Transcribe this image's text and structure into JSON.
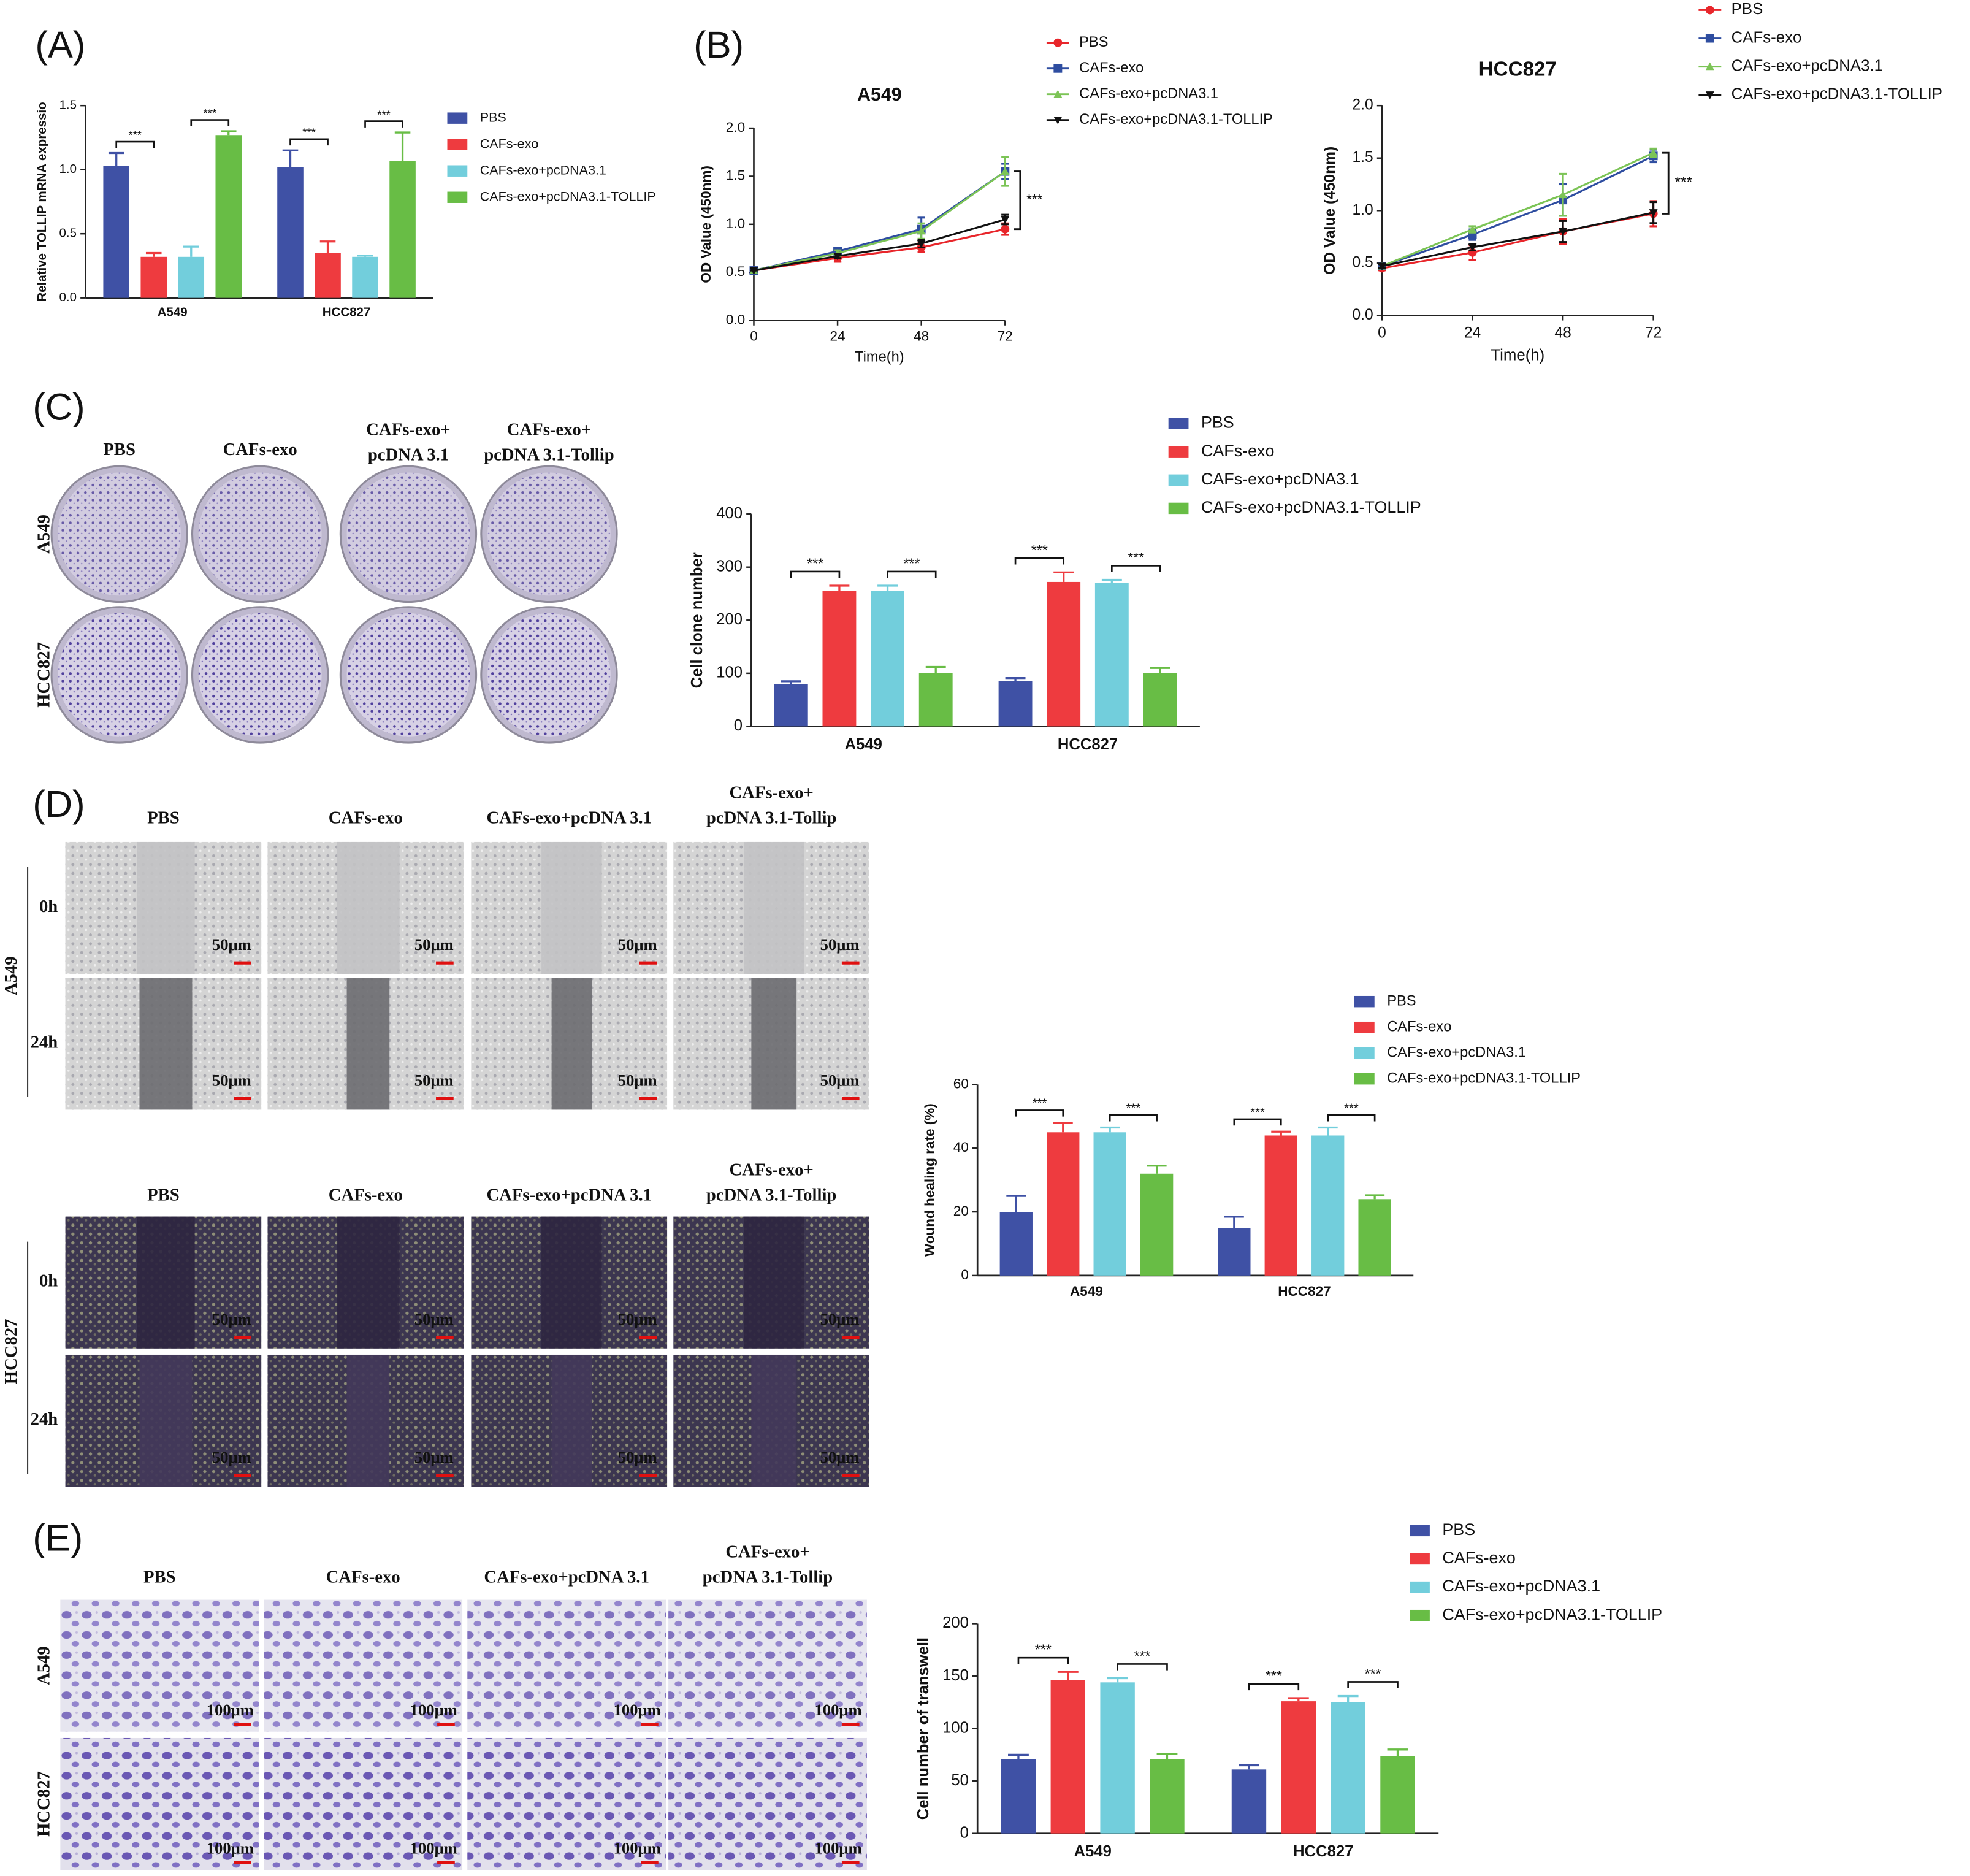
{
  "panels": {
    "labels": [
      "(A)",
      "(B)",
      "(C)",
      "(D)",
      "(E)"
    ],
    "C": {
      "columns": [
        [
          "PBS"
        ],
        [
          "CAFs-exo"
        ],
        [
          "CAFs-exo+",
          "pcDNA 3.1"
        ],
        [
          "CAFs-exo+",
          "pcDNA 3.1-Tollip"
        ]
      ],
      "rows": [
        "A549",
        "HCC827"
      ]
    },
    "D": {
      "columns": [
        [
          "PBS"
        ],
        [
          "CAFs-exo"
        ],
        [
          "CAFs-exo+pcDNA 3.1"
        ],
        [
          "CAFs-exo+",
          "pcDNA 3.1-Tollip"
        ]
      ],
      "timepoints": [
        "0h",
        "24h"
      ],
      "cell_lines": [
        "A549",
        "HCC827"
      ],
      "scale": "50μm"
    },
    "E": {
      "columns": [
        [
          "PBS"
        ],
        [
          "CAFs-exo"
        ],
        [
          "CAFs-exo+pcDNA 3.1"
        ],
        [
          "CAFs-exo+",
          "pcDNA 3.1-Tollip"
        ]
      ],
      "rows": [
        "A549",
        "HCC827"
      ],
      "scale": "100μm"
    }
  },
  "chart_data": [
    {
      "type": "bar",
      "ylabel": "Relative TOLLIP mRNA expressio",
      "categories": [
        "A549",
        "HCC827"
      ],
      "ylim": [
        0,
        1.5
      ],
      "yticks": [
        {
          "value": 0,
          "label": "0.0"
        },
        0.5,
        {
          "value": 1,
          "label": "1.0"
        },
        1.5
      ],
      "series": [
        {
          "name": "PBS",
          "color": "#3f51a5",
          "values": [
            1.03,
            1.02
          ],
          "errors": [
            0.1,
            0.13
          ]
        },
        {
          "name": "CAFs-exo",
          "color": "#ee3b3f",
          "values": [
            0.32,
            0.35
          ],
          "errors": [
            0.03,
            0.09
          ]
        },
        {
          "name": "CAFs-exo+pcDNA3.1",
          "color": "#72cedc",
          "values": [
            0.32,
            0.32
          ],
          "errors": [
            0.08,
            0.01
          ]
        },
        {
          "name": "CAFs-exo+pcDNA3.1-TOLLIP",
          "color": "#68bd45",
          "values": [
            1.27,
            1.07
          ],
          "errors": [
            0.03,
            0.22
          ]
        }
      ],
      "significance": [
        "***",
        "***",
        "***",
        "***"
      ]
    },
    {
      "type": "line",
      "title": "A549",
      "xlabel": "Time(h)",
      "ylabel": "OD Value (450nm)",
      "x": [
        0,
        24,
        48,
        72
      ],
      "xlim": [
        0,
        72
      ],
      "xticks": [
        0,
        24,
        48,
        72
      ],
      "ylim": [
        0,
        2
      ],
      "yticks": [
        {
          "value": 0,
          "label": "0.0"
        },
        0.5,
        {
          "value": 1,
          "label": "1.0"
        },
        1.5,
        {
          "value": 2,
          "label": "2.0"
        }
      ],
      "series": [
        {
          "name": "PBS",
          "color": "#e8262b",
          "values": [
            0.52,
            0.65,
            0.76,
            0.95
          ],
          "errors": [
            0,
            0.04,
            0.05,
            0.06
          ]
        },
        {
          "name": "CAFs-exo",
          "color": "#2e4da0",
          "values": [
            0.52,
            0.72,
            0.95,
            1.55
          ],
          "errors": [
            0,
            0.02,
            0.12,
            0.08
          ]
        },
        {
          "name": "CAFs-exo+pcDNA3.1",
          "color": "#7cc456",
          "values": [
            0.52,
            0.7,
            0.93,
            1.55
          ],
          "errors": [
            0,
            0.03,
            0.08,
            0.15
          ]
        },
        {
          "name": "CAFs-exo+pcDNA3.1-TOLLIP",
          "color": "#111111",
          "values": [
            0.52,
            0.67,
            0.8,
            1.05
          ],
          "errors": [
            0,
            0.02,
            0.04,
            0.05
          ]
        }
      ],
      "significance": [
        "***"
      ]
    },
    {
      "type": "line",
      "title": "HCC827",
      "xlabel": "Time(h)",
      "ylabel": "OD Value (450nm)",
      "x": [
        0,
        24,
        48,
        72
      ],
      "xlim": [
        0,
        72
      ],
      "xticks": [
        0,
        24,
        48,
        72
      ],
      "ylim": [
        0,
        2
      ],
      "yticks": [
        {
          "value": 0,
          "label": "0.0"
        },
        0.5,
        {
          "value": 1,
          "label": "1.0"
        },
        1.5,
        {
          "value": 2,
          "label": "2.0"
        }
      ],
      "series": [
        {
          "name": "PBS",
          "color": "#e8262b",
          "values": [
            0.45,
            0.6,
            0.8,
            0.97
          ],
          "errors": [
            0.02,
            0.07,
            0.12,
            0.12
          ]
        },
        {
          "name": "CAFs-exo",
          "color": "#2e4da0",
          "values": [
            0.47,
            0.77,
            1.1,
            1.52
          ],
          "errors": [
            0.02,
            0.05,
            0.15,
            0.06
          ]
        },
        {
          "name": "CAFs-exo+pcDNA3.1",
          "color": "#7cc456",
          "values": [
            0.47,
            0.82,
            1.15,
            1.55
          ],
          "errors": [
            0.02,
            0.03,
            0.2,
            0.04
          ]
        },
        {
          "name": "CAFs-exo+pcDNA3.1-TOLLIP",
          "color": "#111111",
          "values": [
            0.47,
            0.65,
            0.8,
            0.98
          ],
          "errors": [
            0.02,
            0.03,
            0.1,
            0.1
          ]
        }
      ],
      "significance": [
        "***"
      ]
    },
    {
      "type": "bar",
      "ylabel": "Cell clone number",
      "categories": [
        "A549",
        "HCC827"
      ],
      "ylim": [
        0,
        400
      ],
      "yticks": [
        0,
        100,
        200,
        300,
        400
      ],
      "series": [
        {
          "name": "PBS",
          "color": "#3f51a5",
          "values": [
            80,
            85
          ],
          "errors": [
            5,
            6
          ]
        },
        {
          "name": "CAFs-exo",
          "color": "#ee3b3f",
          "values": [
            255,
            272
          ],
          "errors": [
            10,
            18
          ]
        },
        {
          "name": "CAFs-exo+pcDNA3.1",
          "color": "#72cedc",
          "values": [
            255,
            270
          ],
          "errors": [
            10,
            6
          ]
        },
        {
          "name": "CAFs-exo+pcDNA3.1-TOLLIP",
          "color": "#68bd45",
          "values": [
            100,
            100
          ],
          "errors": [
            12,
            10
          ]
        }
      ],
      "significance": [
        "***",
        "***",
        "***",
        "***"
      ]
    },
    {
      "type": "bar",
      "ylabel": "Wound healing rate (%)",
      "categories": [
        "A549",
        "HCC827"
      ],
      "ylim": [
        0,
        60
      ],
      "yticks": [
        0,
        20,
        40,
        60
      ],
      "series": [
        {
          "name": "PBS",
          "color": "#3f51a5",
          "values": [
            20,
            15
          ],
          "errors": [
            5,
            3.5
          ]
        },
        {
          "name": "CAFs-exo",
          "color": "#ee3b3f",
          "values": [
            45,
            44
          ],
          "errors": [
            3,
            1.2
          ]
        },
        {
          "name": "CAFs-exo+pcDNA3.1",
          "color": "#72cedc",
          "values": [
            45,
            44
          ],
          "errors": [
            1.5,
            2.5
          ]
        },
        {
          "name": "CAFs-exo+pcDNA3.1-TOLLIP",
          "color": "#68bd45",
          "values": [
            32,
            24
          ],
          "errors": [
            2.5,
            1.2
          ]
        }
      ],
      "significance": [
        "***",
        "***",
        "***",
        "***"
      ]
    },
    {
      "type": "bar",
      "ylabel": "Cell number of transwell",
      "categories": [
        "A549",
        "HCC827"
      ],
      "ylim": [
        0,
        200
      ],
      "yticks": [
        0,
        50,
        100,
        150,
        200
      ],
      "series": [
        {
          "name": "PBS",
          "color": "#3f51a5",
          "values": [
            71,
            61
          ],
          "errors": [
            4,
            4
          ]
        },
        {
          "name": "CAFs-exo",
          "color": "#ee3b3f",
          "values": [
            146,
            126
          ],
          "errors": [
            8,
            3
          ]
        },
        {
          "name": "CAFs-exo+pcDNA3.1",
          "color": "#72cedc",
          "values": [
            144,
            125
          ],
          "errors": [
            4,
            6
          ]
        },
        {
          "name": "CAFs-exo+pcDNA3.1-TOLLIP",
          "color": "#68bd45",
          "values": [
            71,
            74
          ],
          "errors": [
            5,
            6
          ]
        }
      ],
      "significance": [
        "***",
        "***",
        "***",
        "***"
      ]
    }
  ]
}
